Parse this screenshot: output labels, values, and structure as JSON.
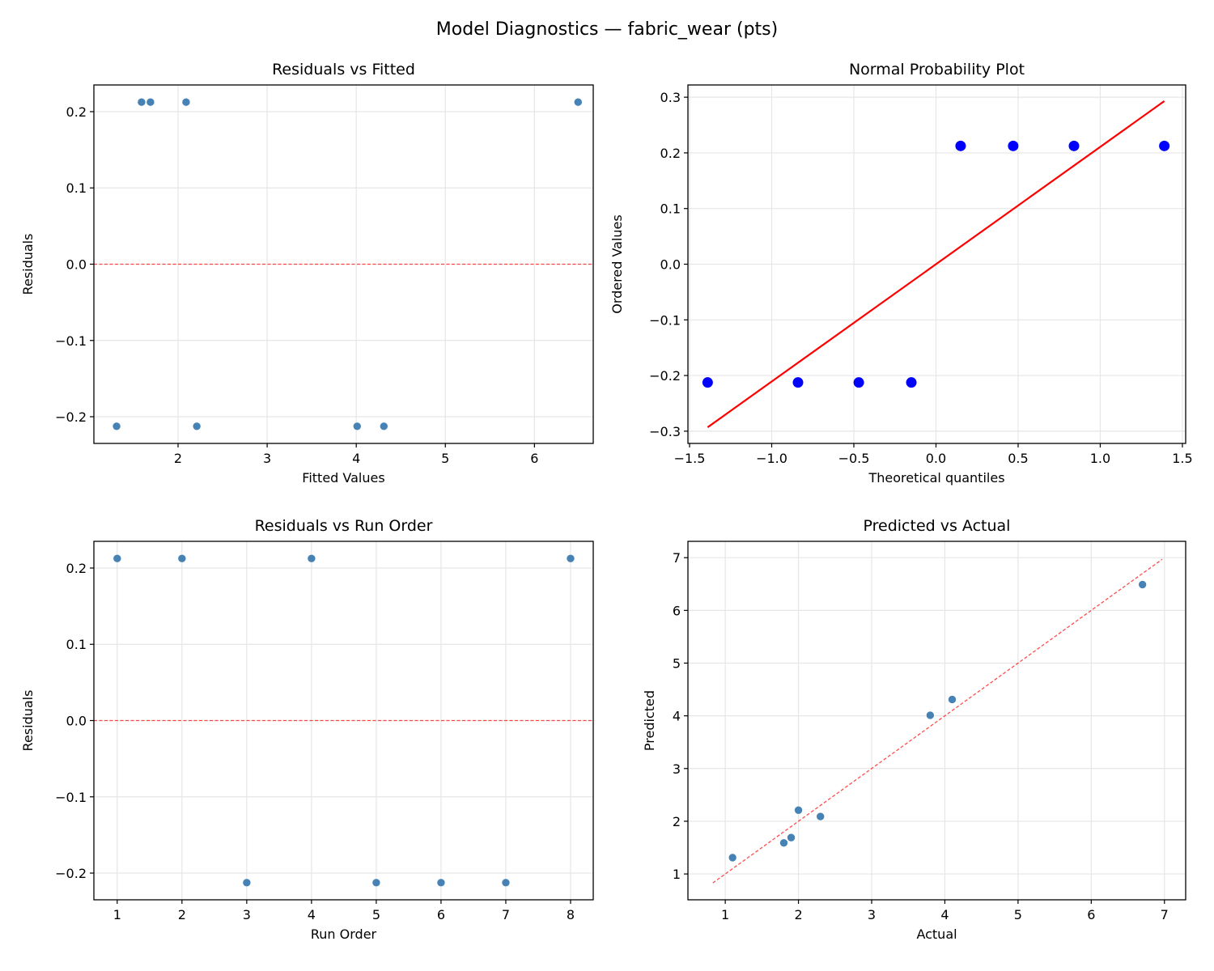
{
  "title": "Model Diagnostics — fabric_wear (pts)",
  "chart_data": [
    {
      "id": "resid-fitted",
      "type": "scatter",
      "title": "Residuals vs Fitted",
      "xlabel": "Fitted Values",
      "ylabel": "Residuals",
      "xlim": [
        1.055,
        6.66
      ],
      "ylim": [
        -0.235,
        0.235
      ],
      "xticks": [
        2,
        3,
        4,
        5,
        6
      ],
      "xtick_labels": [
        "2",
        "3",
        "4",
        "5",
        "6"
      ],
      "yticks": [
        -0.2,
        -0.1,
        0.0,
        0.1,
        0.2
      ],
      "ytick_labels": [
        "−0.2",
        "−0.1",
        "0.0",
        "0.1",
        "0.2"
      ],
      "grid": true,
      "point_color": "#4682b4",
      "x": [
        1.31,
        1.59,
        1.69,
        2.09,
        2.21,
        4.01,
        4.31,
        6.49
      ],
      "y": [
        -0.2125,
        0.2125,
        0.2125,
        0.2125,
        -0.2125,
        -0.2125,
        -0.2125,
        0.2125
      ],
      "reference_line": {
        "type": "hline",
        "y": 0,
        "color": "#ff0000",
        "style": "dashed"
      }
    },
    {
      "id": "normal-prob",
      "type": "scatter",
      "title": "Normal Probability Plot",
      "xlabel": "Theoretical quantiles",
      "ylabel": "Ordered Values",
      "xlim": [
        -1.51,
        1.52
      ],
      "ylim": [
        -0.322,
        0.322
      ],
      "xticks": [
        -1.5,
        -1.0,
        -0.5,
        0.0,
        0.5,
        1.0,
        1.5
      ],
      "xtick_labels": [
        "−1.5",
        "−1.0",
        "−0.5",
        "0.0",
        "0.5",
        "1.0",
        "1.5"
      ],
      "yticks": [
        -0.3,
        -0.2,
        -0.1,
        0.0,
        0.1,
        0.2,
        0.3
      ],
      "ytick_labels": [
        "−0.3",
        "−0.2",
        "−0.1",
        "0.0",
        "0.1",
        "0.2",
        "0.3"
      ],
      "grid": true,
      "point_color": "#0000ff",
      "x": [
        -1.39,
        -0.84,
        -0.47,
        -0.15,
        0.15,
        0.47,
        0.84,
        1.39
      ],
      "y": [
        -0.2125,
        -0.2125,
        -0.2125,
        -0.2125,
        0.2125,
        0.2125,
        0.2125,
        0.2125
      ],
      "reference_line": {
        "type": "segment",
        "x": [
          -1.39,
          1.39
        ],
        "y": [
          -0.293,
          0.293
        ],
        "color": "#ff0000",
        "style": "solid"
      }
    },
    {
      "id": "resid-order",
      "type": "scatter",
      "title": "Residuals vs Run Order",
      "xlabel": "Run Order",
      "ylabel": "Residuals",
      "xlim": [
        0.64,
        8.35
      ],
      "ylim": [
        -0.235,
        0.235
      ],
      "xticks": [
        1,
        2,
        3,
        4,
        5,
        6,
        7,
        8
      ],
      "xtick_labels": [
        "1",
        "2",
        "3",
        "4",
        "5",
        "6",
        "7",
        "8"
      ],
      "yticks": [
        -0.2,
        -0.1,
        0.0,
        0.1,
        0.2
      ],
      "ytick_labels": [
        "−0.2",
        "−0.1",
        "0.0",
        "0.1",
        "0.2"
      ],
      "grid": true,
      "point_color": "#4682b4",
      "x": [
        1,
        2,
        3,
        4,
        5,
        6,
        7,
        8
      ],
      "y": [
        0.2125,
        0.2125,
        -0.2125,
        0.2125,
        -0.2125,
        -0.2125,
        -0.2125,
        0.2125
      ],
      "reference_line": {
        "type": "hline",
        "y": 0,
        "color": "#ff0000",
        "style": "dashed"
      }
    },
    {
      "id": "pred-actual",
      "type": "scatter",
      "title": "Predicted vs Actual",
      "xlabel": "Actual",
      "ylabel": "Predicted",
      "xlim": [
        0.49,
        7.29
      ],
      "ylim": [
        0.51,
        7.31
      ],
      "xticks": [
        1,
        2,
        3,
        4,
        5,
        6,
        7
      ],
      "xtick_labels": [
        "1",
        "2",
        "3",
        "4",
        "5",
        "6",
        "7"
      ],
      "yticks": [
        1,
        2,
        3,
        4,
        5,
        6,
        7
      ],
      "ytick_labels": [
        "1",
        "2",
        "3",
        "4",
        "5",
        "6",
        "7"
      ],
      "grid": true,
      "point_color": "#4682b4",
      "x": [
        1.1,
        1.8,
        1.9,
        2.0,
        2.3,
        3.8,
        4.1,
        6.7
      ],
      "y": [
        1.31,
        1.59,
        1.69,
        2.21,
        2.09,
        4.01,
        4.31,
        6.49
      ],
      "reference_line": {
        "type": "segment",
        "x": [
          0.83,
          6.97
        ],
        "y": [
          0.83,
          6.97
        ],
        "color": "#ff0000",
        "style": "dashed"
      }
    }
  ]
}
